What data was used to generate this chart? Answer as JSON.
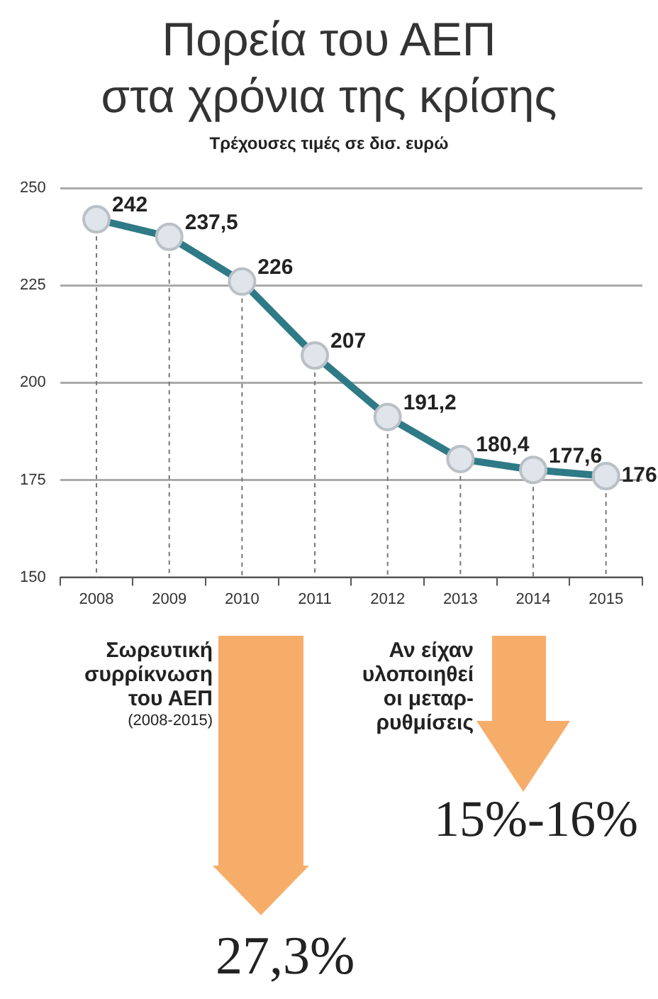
{
  "chart_data": {
    "type": "line",
    "title": "Πορεία του ΑΕΠ\nστα χρόνια της κρίσης",
    "subtitle": "Τρέχουσες τιμές σε δισ. ευρώ",
    "categories": [
      "2008",
      "2009",
      "2010",
      "2011",
      "2012",
      "2013",
      "2014",
      "2015"
    ],
    "series": [
      {
        "color": "#2f7a87",
        "values": [
          242,
          237.5,
          226,
          207,
          191.2,
          180.4,
          177.6,
          176
        ]
      }
    ],
    "value_labels": [
      "242",
      "237,5",
      "226",
      "207",
      "191,2",
      "180,4",
      "177,6",
      "176"
    ],
    "ylim": [
      150,
      250
    ],
    "yticks": [
      150,
      175,
      200,
      225,
      250
    ],
    "grid": true,
    "legend": false,
    "marker": "circle",
    "line_style": "solid",
    "annotations": [
      "Σωρευτική\nσυρρίκνωση\nτου ΑΕΠ",
      "(2008-2015)",
      "27,3%",
      "Αν είχαν\nυλοποιηθεί\nοι μεταρ-\nρυθμίσεις",
      "15%-16%"
    ]
  }
}
